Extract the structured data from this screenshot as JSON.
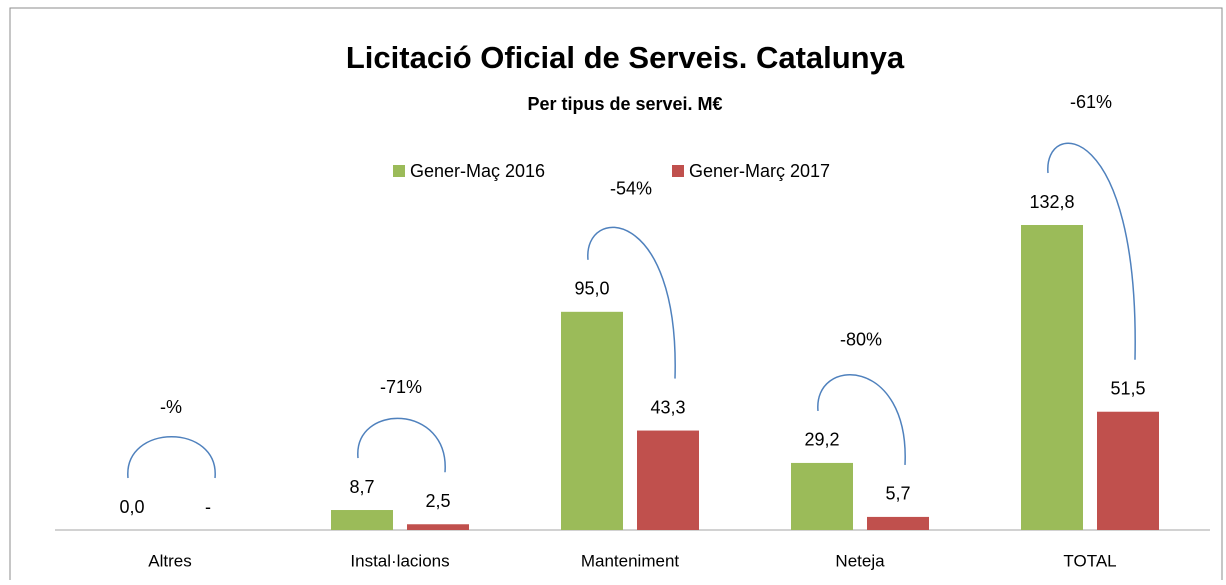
{
  "chart_data": {
    "type": "bar",
    "title": "Licitació Oficial de Serveis. Catalunya",
    "subtitle": "Per tipus de servei. M€",
    "categories": [
      "Altres",
      "Instal·lacions",
      "Manteniment",
      "Neteja",
      "TOTAL"
    ],
    "series": [
      {
        "name": "Gener-Maç 2016",
        "color": "#9bbb59",
        "values": [
          0,
          8.7,
          95,
          29.2,
          132.8
        ],
        "value_labels": [
          "0,0",
          "8,7",
          "95,0",
          "29,2",
          "132,8"
        ]
      },
      {
        "name": "Gener-Març 2017",
        "color": "#c0504d",
        "values": [
          null,
          2.5,
          43.3,
          5.7,
          51.5
        ],
        "value_labels": [
          "-",
          "2,5",
          "43,3",
          "5,7",
          "51,5"
        ]
      }
    ],
    "annotations": [
      "-%",
      "-71%",
      "-54%",
      "-80%",
      "-61%"
    ],
    "legend": "top"
  }
}
